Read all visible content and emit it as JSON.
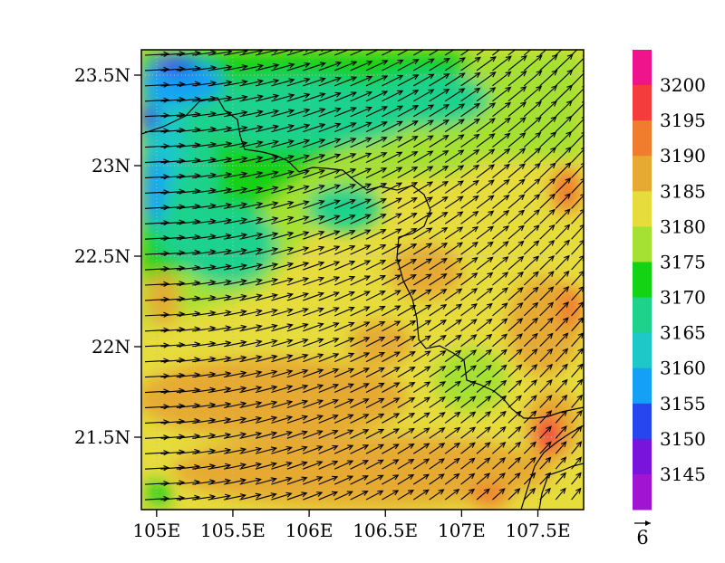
{
  "map": {
    "y_axis": {
      "ticks": [
        {
          "value": 23.5,
          "label": "23.5N"
        },
        {
          "value": 23.0,
          "label": "23N"
        },
        {
          "value": 22.5,
          "label": "22.5N"
        },
        {
          "value": 22.0,
          "label": "22N"
        },
        {
          "value": 21.5,
          "label": "21.5N"
        }
      ]
    },
    "x_axis": {
      "ticks": [
        {
          "value": 105.0,
          "label": "105E"
        },
        {
          "value": 105.5,
          "label": "105.5E"
        },
        {
          "value": 106.0,
          "label": "106E"
        },
        {
          "value": 106.5,
          "label": "106.5E"
        },
        {
          "value": 107.0,
          "label": "107E"
        },
        {
          "value": 107.5,
          "label": "107.5E"
        }
      ]
    },
    "extent": {
      "lon_min": 104.9,
      "lon_max": 107.8,
      "lat_min": 21.1,
      "lat_max": 23.64
    }
  },
  "colorbar": {
    "labels": [
      "3200",
      "3195",
      "3190",
      "3185",
      "3180",
      "3175",
      "3170",
      "3165",
      "3160",
      "3155",
      "3150",
      "3145"
    ],
    "colors": [
      "#f0148c",
      "#f53c3c",
      "#f07d2d",
      "#e6aa32",
      "#e6dc3c",
      "#a5e132",
      "#14d214",
      "#1ed28c",
      "#1ec8c8",
      "#14a0f5",
      "#2846f0",
      "#7814dc",
      "#a014d2"
    ]
  },
  "reference_vector": {
    "label": "6"
  },
  "border_color": "#000000",
  "vector_color": "#000000"
}
